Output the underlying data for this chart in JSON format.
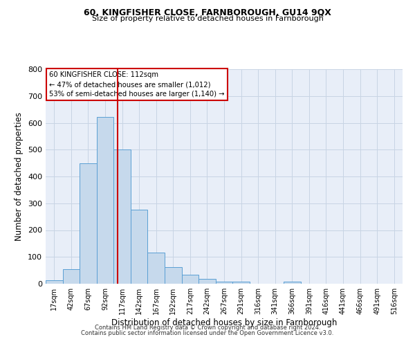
{
  "title1": "60, KINGFISHER CLOSE, FARNBOROUGH, GU14 9QX",
  "title2": "Size of property relative to detached houses in Farnborough",
  "xlabel": "Distribution of detached houses by size in Farnborough",
  "ylabel": "Number of detached properties",
  "footnote1": "Contains HM Land Registry data © Crown copyright and database right 2024.",
  "footnote2": "Contains public sector information licensed under the Open Government Licence v3.0.",
  "bar_values": [
    12,
    53,
    450,
    622,
    500,
    277,
    115,
    62,
    33,
    18,
    9,
    8,
    0,
    0,
    7,
    0,
    0,
    0,
    0,
    0,
    0
  ],
  "bar_labels": [
    "17sqm",
    "42sqm",
    "67sqm",
    "92sqm",
    "117sqm",
    "142sqm",
    "167sqm",
    "192sqm",
    "217sqm",
    "242sqm",
    "267sqm",
    "291sqm",
    "316sqm",
    "341sqm",
    "366sqm",
    "391sqm",
    "416sqm",
    "441sqm",
    "466sqm",
    "491sqm",
    "516sqm"
  ],
  "bar_color": "#c6d9ec",
  "bar_edge_color": "#5a9fd4",
  "grid_color": "#c8d4e4",
  "background_color": "#e8eef8",
  "vline_x": 3.72,
  "vline_color": "#cc0000",
  "annotation_line1": "60 KINGFISHER CLOSE: 112sqm",
  "annotation_line2": "← 47% of detached houses are smaller (1,012)",
  "annotation_line3": "53% of semi-detached houses are larger (1,140) →",
  "annotation_box_color": "white",
  "annotation_box_edge": "#cc0000",
  "ylim": [
    0,
    800
  ],
  "yticks": [
    0,
    100,
    200,
    300,
    400,
    500,
    600,
    700,
    800
  ]
}
